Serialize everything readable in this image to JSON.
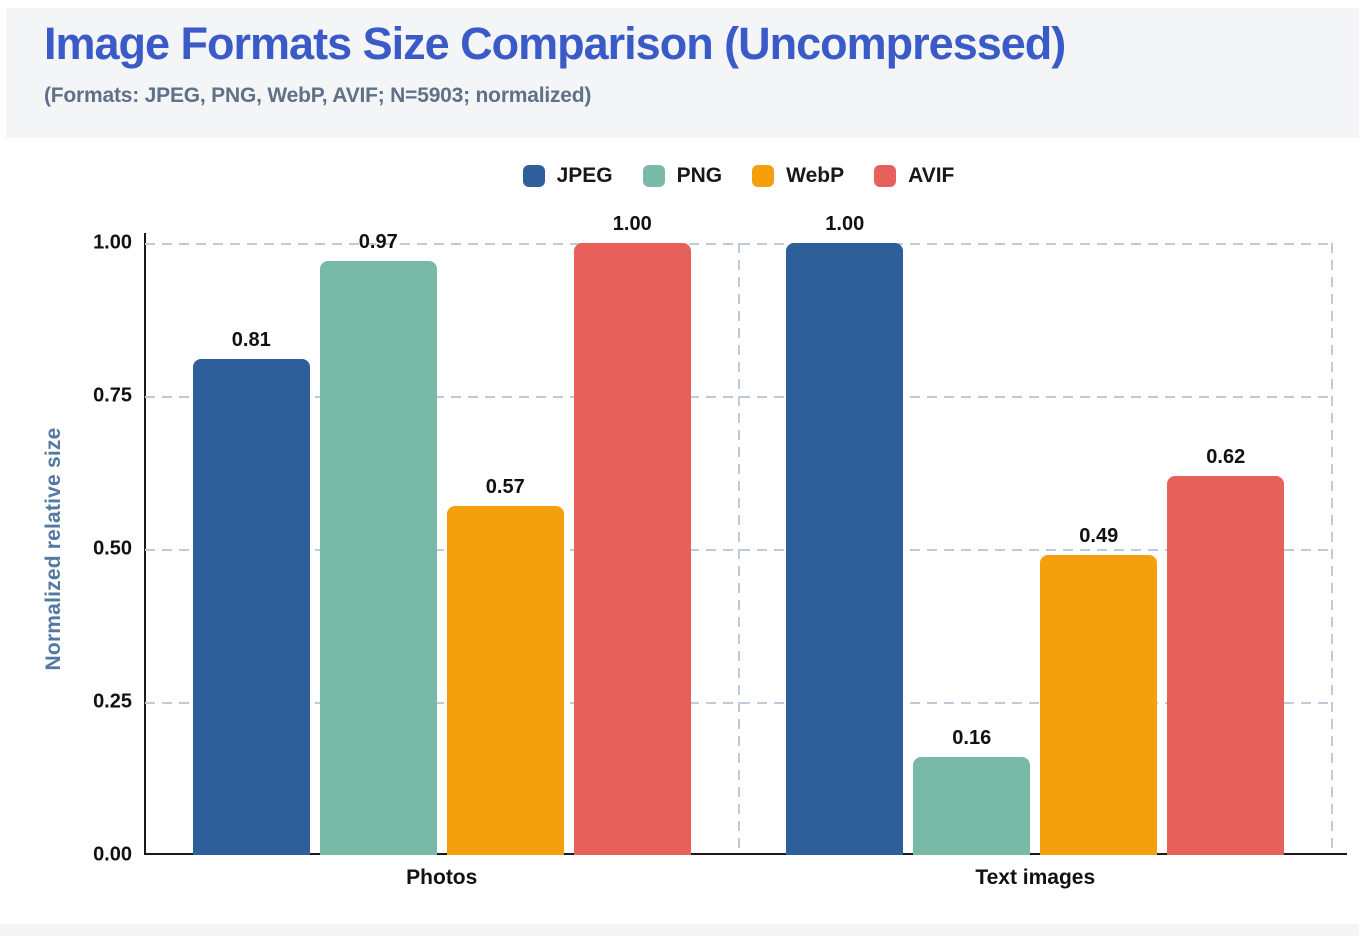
{
  "header": {
    "title": "Image Formats Size Comparison (Uncompressed)",
    "subtitle": "(Formats: JPEG, PNG, WebP, AVIF; N=5903; normalized)"
  },
  "chart_data": {
    "type": "bar",
    "title": "Image Formats Size Comparison (Uncompressed)",
    "subtitle": "(Formats: JPEG, PNG, WebP, AVIF; N=5903; normalized)",
    "categories": [
      "Photos",
      "Text images"
    ],
    "series": [
      {
        "name": "JPEG",
        "color": "#2F5F9B",
        "values": [
          0.81,
          1.0
        ]
      },
      {
        "name": "PNG",
        "color": "#79B9A8",
        "values": [
          0.97,
          0.16
        ]
      },
      {
        "name": "WebP",
        "color": "#F4A00C",
        "values": [
          0.57,
          0.49
        ]
      },
      {
        "name": "AVIF",
        "color": "#E8605C",
        "values": [
          1.0,
          0.62
        ]
      }
    ],
    "xlabel": "",
    "ylabel": "Normalized relative size",
    "ylim": [
      0,
      1.0
    ],
    "yticks": [
      "1.00",
      "0.75",
      "0.50",
      "0.25",
      "0.00"
    ],
    "grid": true,
    "legend_position": "top"
  },
  "colors": {
    "title": "#3A5BC7",
    "subtitle": "#5F7188",
    "axis_title": "#5379A3",
    "grid": "#BCCCDC",
    "axis_line": "#1A1A1A",
    "header_background": "#F4F5F6",
    "value_label": "#111111"
  }
}
